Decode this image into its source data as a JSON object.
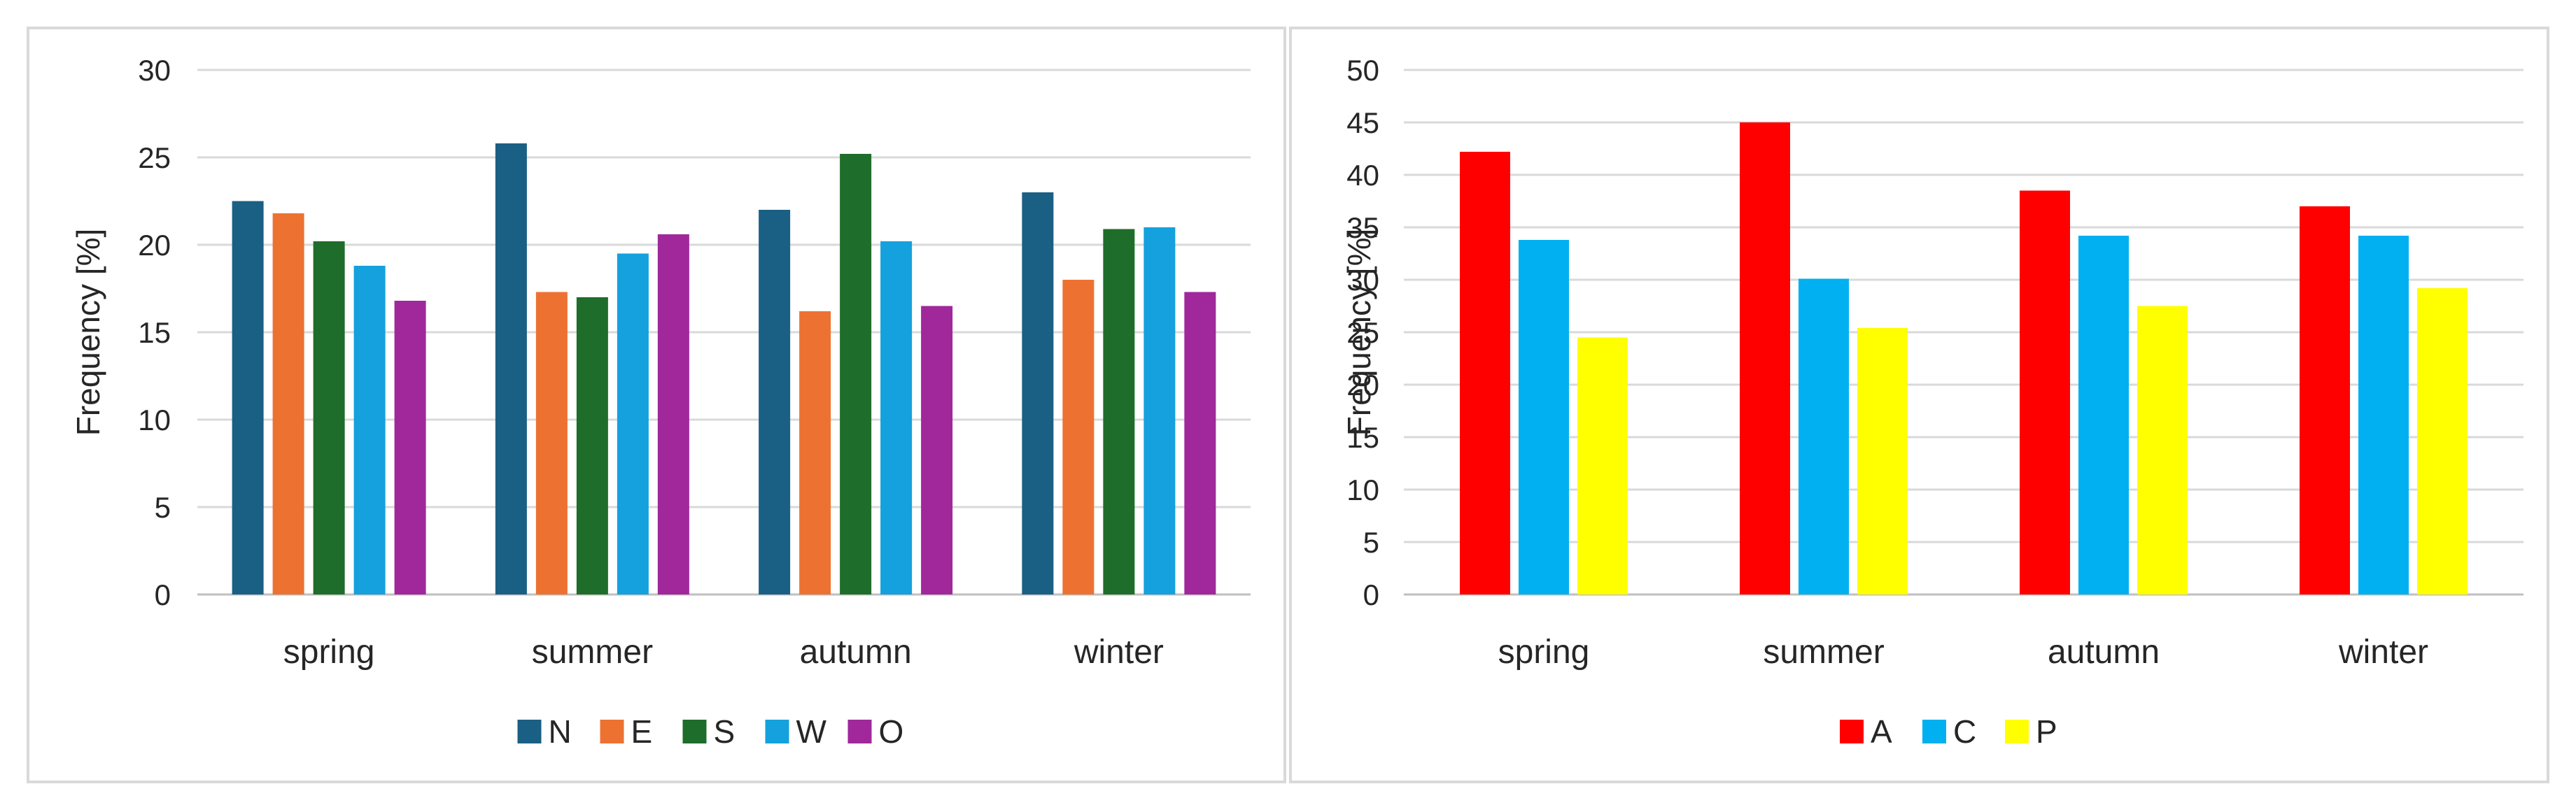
{
  "chart_data": [
    {
      "type": "bar",
      "ylabel": "Frequency [%]",
      "ylim": [
        0,
        30
      ],
      "yticks": [
        0,
        5,
        10,
        15,
        20,
        25,
        30
      ],
      "grid": true,
      "legend_position": "bottom",
      "categories": [
        "spring",
        "summer",
        "autumn",
        "winter"
      ],
      "series": [
        {
          "name": "N",
          "color": "#1a5f84",
          "values": [
            22.5,
            25.8,
            22.0,
            23.0
          ]
        },
        {
          "name": "E",
          "color": "#ed7231",
          "values": [
            21.8,
            17.3,
            16.2,
            18.0
          ]
        },
        {
          "name": "S",
          "color": "#1e6d2a",
          "values": [
            20.2,
            17.0,
            25.2,
            20.9
          ]
        },
        {
          "name": "W",
          "color": "#14a1dd",
          "values": [
            18.8,
            19.5,
            20.2,
            21.0
          ]
        },
        {
          "name": "O",
          "color": "#a0289b",
          "values": [
            16.8,
            20.6,
            16.5,
            17.3
          ]
        }
      ]
    },
    {
      "type": "bar",
      "ylabel": "Frequency [%]",
      "ylim": [
        0,
        50
      ],
      "yticks": [
        0,
        5,
        10,
        15,
        20,
        25,
        30,
        35,
        40,
        45,
        50
      ],
      "grid": true,
      "legend_position": "bottom",
      "categories": [
        "spring",
        "summer",
        "autumn",
        "winter"
      ],
      "series": [
        {
          "name": "A",
          "color": "#ff0000",
          "values": [
            42.2,
            45.0,
            38.5,
            37.0
          ]
        },
        {
          "name": "C",
          "color": "#00b0f0",
          "values": [
            33.8,
            30.1,
            34.2,
            34.2
          ]
        },
        {
          "name": "P",
          "color": "#ffff00",
          "values": [
            24.5,
            25.4,
            27.5,
            29.2
          ]
        }
      ]
    }
  ]
}
